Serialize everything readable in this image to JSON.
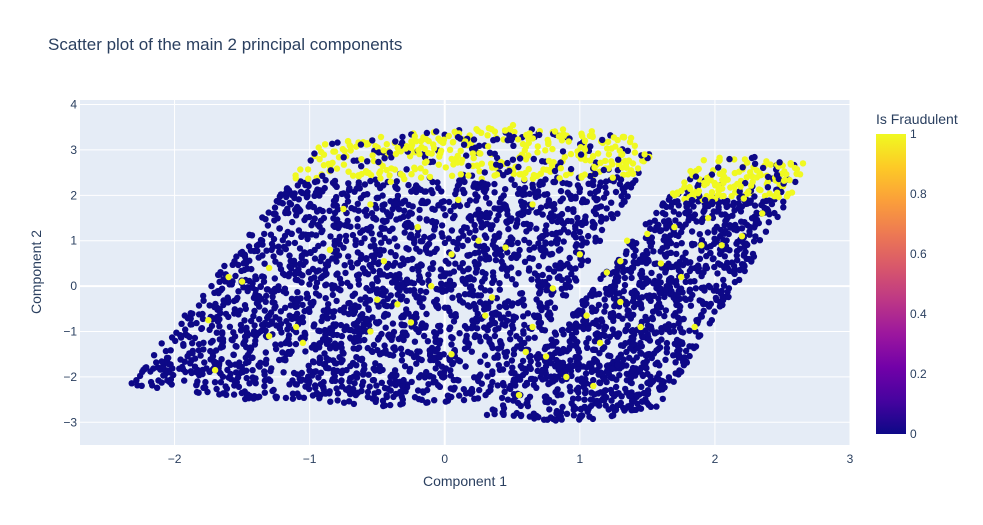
{
  "chart_data": {
    "type": "scatter",
    "title": "Scatter plot of the main 2 principal components",
    "xlabel": "Component 1",
    "ylabel": "Component 2",
    "xlim": [
      -2.7,
      3.0
    ],
    "ylim": [
      -3.5,
      4.1
    ],
    "xticks": [
      -2,
      -1,
      0,
      1,
      2,
      3
    ],
    "yticks": [
      -3,
      -2,
      -1,
      0,
      1,
      2,
      3,
      4
    ],
    "grid": true,
    "colorbar": {
      "title": "Is Fraudulent",
      "ticks": [
        0,
        0.2,
        0.4,
        0.6,
        0.8,
        1
      ],
      "range": [
        0,
        1
      ],
      "colorscale": [
        "#0d0887",
        "#46039f",
        "#7201a8",
        "#9c179e",
        "#bd3786",
        "#d8576b",
        "#ed7953",
        "#fb9f3a",
        "#fdca26",
        "#f0f921"
      ]
    },
    "colors": {
      "legit": "#0d0887",
      "fraud": "#f0f921",
      "plot_bg": "#e5ecf6",
      "grid": "#ffffff"
    },
    "clusters": [
      {
        "name": "left",
        "x": [
          -2.35,
          -1.3,
          -0.4,
          0.45,
          1.55,
          1.35,
          0.5,
          -0.9,
          -2.35
        ],
        "y": [
          -2.2,
          -2.55,
          -2.65,
          -2.45,
          2.9,
          3.35,
          3.55,
          3.2,
          -2.2
        ],
        "fraud_band_from": 2.35
      },
      {
        "name": "right",
        "x": [
          0.3,
          1.0,
          1.6,
          2.45,
          2.7,
          2.3,
          1.9,
          0.3
        ],
        "y": [
          -2.85,
          -3.0,
          -2.65,
          1.4,
          2.75,
          2.85,
          2.85,
          -2.85
        ],
        "fraud_band_from": 1.9
      }
    ],
    "fraud_outliers": [
      [
        -1.7,
        -1.85
      ],
      [
        -1.6,
        0.2
      ],
      [
        -1.5,
        0.1
      ],
      [
        -1.3,
        0.4
      ],
      [
        -1.3,
        -1.1
      ],
      [
        -1.1,
        -0.9
      ],
      [
        -1.05,
        -1.25
      ],
      [
        -0.85,
        0.8
      ],
      [
        -0.75,
        1.7
      ],
      [
        -0.55,
        1.8
      ],
      [
        -0.55,
        -1.0
      ],
      [
        -0.5,
        -0.3
      ],
      [
        -0.45,
        0.55
      ],
      [
        -0.35,
        -0.4
      ],
      [
        -0.25,
        -0.8
      ],
      [
        -0.1,
        0.0
      ],
      [
        0.05,
        -1.5
      ],
      [
        0.1,
        1.9
      ],
      [
        0.25,
        1.0
      ],
      [
        0.3,
        -0.65
      ],
      [
        0.45,
        0.85
      ],
      [
        0.65,
        1.8
      ],
      [
        0.65,
        -0.9
      ],
      [
        -0.2,
        1.3
      ],
      [
        0.05,
        0.7
      ],
      [
        -1.75,
        -0.75
      ],
      [
        -0.4,
        2.3
      ],
      [
        0.35,
        -0.25
      ],
      [
        0.55,
        -2.4
      ],
      [
        0.6,
        -1.45
      ],
      [
        0.75,
        -1.55
      ],
      [
        0.8,
        -0.05
      ],
      [
        0.9,
        -2.0
      ],
      [
        1.05,
        -0.65
      ],
      [
        1.15,
        -1.25
      ],
      [
        1.1,
        -2.2
      ],
      [
        1.2,
        0.3
      ],
      [
        1.3,
        -0.35
      ],
      [
        1.35,
        1.0
      ],
      [
        1.45,
        -0.9
      ],
      [
        1.5,
        1.15
      ],
      [
        1.6,
        0.5
      ],
      [
        1.7,
        1.3
      ],
      [
        1.75,
        0.2
      ],
      [
        1.85,
        -0.9
      ],
      [
        1.9,
        0.9
      ],
      [
        2.05,
        0.9
      ],
      [
        2.2,
        1.1
      ],
      [
        2.35,
        1.6
      ],
      [
        1.95,
        1.5
      ],
      [
        1.3,
        0.55
      ],
      [
        1.0,
        0.7
      ]
    ]
  }
}
